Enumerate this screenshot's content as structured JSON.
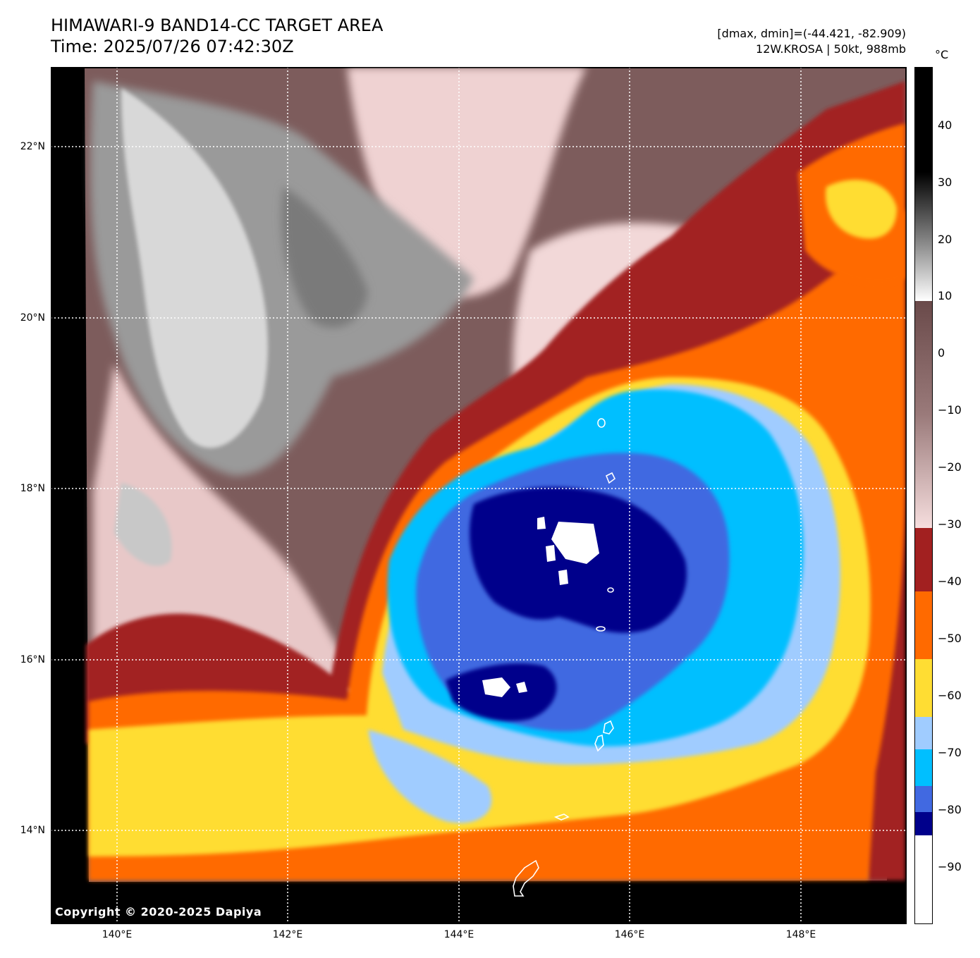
{
  "title": {
    "line1": "HIMAWARI-9 BAND14-CC TARGET AREA",
    "line2": "Time: 2025/07/26 07:42:30Z"
  },
  "info": {
    "line1": "[dmax, dmin]=(-44.421, -82.909)",
    "line2": "12W.KROSA | 50kt, 988mb"
  },
  "colorbar": {
    "unit": "°C",
    "ticks": [
      "40",
      "30",
      "20",
      "10",
      "0",
      "−10",
      "−20",
      "−30",
      "−40",
      "−50",
      "−60",
      "−70",
      "−80",
      "−90"
    ],
    "colors": {
      "black": "#000000",
      "gray": "#8a8a8a",
      "brown": "#7a5a5a",
      "pink": "#f4d6d6",
      "dark_red": "#a22020",
      "orange": "#ff6a00",
      "yellow": "#ffdd33",
      "light_blue": "#a0ccff",
      "cyan": "#00bfff",
      "blue": "#4169e1",
      "navy": "#00008b",
      "white": "#ffffff"
    }
  },
  "axes": {
    "lat_labels": [
      "22°N",
      "20°N",
      "18°N",
      "16°N",
      "14°N"
    ],
    "lon_labels": [
      "140°E",
      "142°E",
      "144°E",
      "146°E",
      "148°E"
    ]
  },
  "copyright": "Copyright © 2020-2025 Dapiya"
}
